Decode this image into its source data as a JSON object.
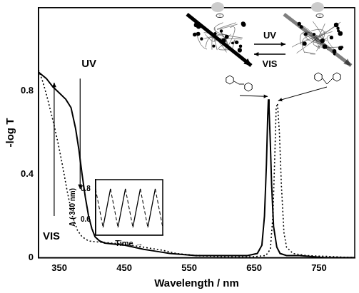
{
  "chart_data": [
    {
      "type": "line",
      "x_label": "Wavelength / nm",
      "y_label": "-log T",
      "xlim": [
        318,
        805
      ],
      "xticks": [
        350,
        450,
        550,
        650,
        750
      ],
      "ylim": [
        0,
        1.2
      ],
      "yticks": [
        0,
        0.4,
        0.8
      ],
      "grid": false,
      "annotations": [
        "VIS",
        "UV"
      ],
      "scheme_labels": [
        "UV",
        "VIS"
      ],
      "series": [
        {
          "color": "#000000",
          "line_style": "solid",
          "x": [
            318,
            330,
            340,
            350,
            360,
            368,
            375,
            380,
            385,
            390,
            395,
            400,
            405,
            412,
            420,
            435,
            450,
            465,
            480,
            500,
            520,
            540,
            560,
            600,
            640,
            655,
            662,
            666,
            669,
            671,
            672,
            673,
            675,
            677,
            680,
            685,
            690,
            700,
            720,
            760,
            805
          ],
          "values": [
            0.89,
            0.86,
            0.82,
            0.79,
            0.76,
            0.72,
            0.62,
            0.52,
            0.4,
            0.29,
            0.2,
            0.14,
            0.1,
            0.08,
            0.07,
            0.065,
            0.06,
            0.05,
            0.04,
            0.03,
            0.02,
            0.015,
            0.01,
            0.01,
            0.01,
            0.02,
            0.06,
            0.2,
            0.45,
            0.68,
            0.76,
            0.72,
            0.55,
            0.35,
            0.15,
            0.05,
            0.02,
            0.01,
            0.01,
            0,
            0
          ]
        },
        {
          "color": "#000000",
          "line_style": "dotted",
          "x": [
            318,
            325,
            332,
            340,
            348,
            355,
            362,
            370,
            378,
            385,
            395,
            410,
            430,
            450,
            470,
            490,
            510,
            530,
            560,
            600,
            650,
            668,
            675,
            679,
            682,
            684,
            686,
            689,
            692,
            696,
            700,
            710,
            730,
            770,
            805
          ],
          "values": [
            0.9,
            0.84,
            0.76,
            0.66,
            0.55,
            0.44,
            0.32,
            0.2,
            0.13,
            0.1,
            0.08,
            0.075,
            0.07,
            0.065,
            0.055,
            0.045,
            0.035,
            0.02,
            0.01,
            0.005,
            0.005,
            0.01,
            0.04,
            0.2,
            0.5,
            0.72,
            0.74,
            0.6,
            0.35,
            0.12,
            0.05,
            0.02,
            0.01,
            0.005,
            0
          ]
        }
      ]
    },
    {
      "type": "line",
      "x_label": "Time →",
      "y_label": "A ( 340 nm)",
      "xlim": [
        0,
        9
      ],
      "xticks": [],
      "ylim": [
        0.5,
        0.86
      ],
      "yticks": [
        0.6,
        0.8
      ],
      "tick_labels": "y",
      "grid": false,
      "series": [
        {
          "color": "#000000",
          "line_style": "dashed",
          "x": [
            0,
            1,
            1.5,
            2,
            3,
            3.5,
            4,
            5,
            5.5,
            6,
            7,
            7.5,
            8,
            9
          ],
          "values": [
            0.8,
            0.55,
            null,
            0.8,
            0.55,
            null,
            0.8,
            0.55,
            null,
            0.8,
            0.55,
            null,
            0.8,
            0.55
          ]
        },
        {
          "color": "#000000",
          "line_style": "solid",
          "x": [
            1,
            2,
            2.5,
            3,
            4,
            4.5,
            5,
            6,
            6.5,
            7,
            8
          ],
          "values": [
            0.55,
            0.8,
            null,
            0.55,
            0.8,
            null,
            0.55,
            0.8,
            null,
            0.55,
            0.8
          ]
        }
      ]
    }
  ]
}
